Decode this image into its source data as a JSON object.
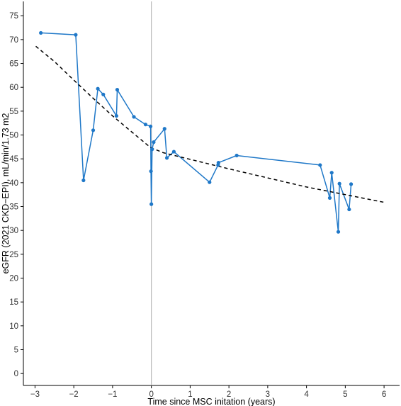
{
  "chart_data": {
    "type": "line",
    "title": "",
    "xlabel": "Time since MSC initation (years)",
    "ylabel": "eGFR (2021 CKD−EPI), mL/min/1.73 m2",
    "xlim": [
      -3.3,
      6.4
    ],
    "ylim": [
      -2.5,
      78
    ],
    "x_ticks": [
      -3,
      -2,
      -1,
      0,
      1,
      2,
      3,
      4,
      5,
      6
    ],
    "y_ticks": [
      0,
      5,
      10,
      15,
      20,
      25,
      30,
      35,
      40,
      45,
      50,
      55,
      60,
      65,
      70,
      75
    ],
    "grid": false,
    "reference_line_x": 0,
    "series": [
      {
        "kind": "observed",
        "color": "#1f78c8",
        "x": [
          -2.85,
          -1.95,
          -1.75,
          -1.5,
          -1.38,
          -1.24,
          -0.9,
          -0.88,
          -0.45,
          -0.15,
          -0.02,
          -0.01,
          0.0,
          0.02,
          0.06,
          0.34,
          0.4,
          0.58,
          1.5,
          1.72,
          1.73,
          2.2,
          4.35,
          4.6,
          4.65,
          4.82,
          4.85,
          5.1,
          5.15
        ],
        "y": [
          71.4,
          71.0,
          40.5,
          51.0,
          59.7,
          58.5,
          54.0,
          59.5,
          53.8,
          52.2,
          51.8,
          42.4,
          35.5,
          47.0,
          48.5,
          51.3,
          45.2,
          46.5,
          40.1,
          43.7,
          44.2,
          45.7,
          43.7,
          36.8,
          42.1,
          29.7,
          39.8,
          34.4,
          39.7
        ]
      },
      {
        "kind": "trend",
        "color": "#000000",
        "style": "dashed",
        "x": [
          -2.98,
          -2.5,
          -2.0,
          -1.5,
          -1.0,
          -0.5,
          -0.1,
          0.0,
          0.3,
          1.0,
          2.0,
          3.0,
          4.0,
          5.0,
          6.0
        ],
        "y": [
          68.6,
          65.4,
          61.5,
          57.7,
          54.0,
          50.6,
          47.9,
          47.3,
          46.3,
          44.9,
          42.9,
          41.0,
          39.1,
          37.5,
          35.9
        ]
      }
    ]
  }
}
